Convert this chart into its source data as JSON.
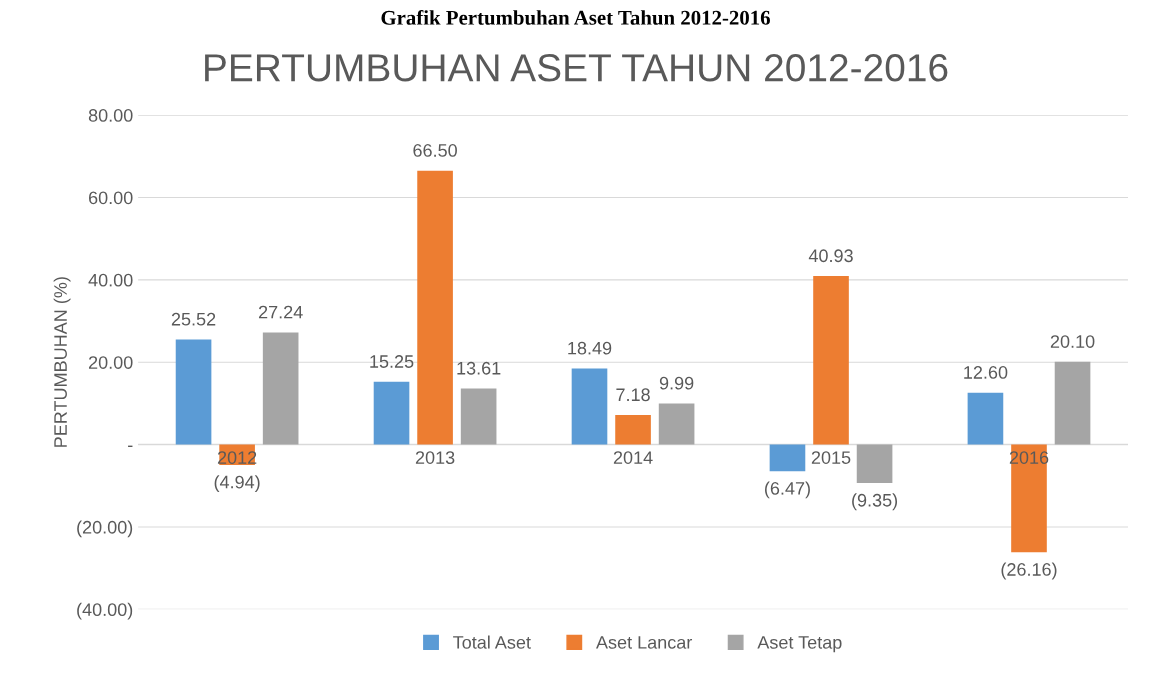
{
  "chart_data": {
    "type": "bar",
    "title": "PERTUMBUHAN ASET TAHUN 2012-2016",
    "ylabel": "PERTUMBUHAN (%)",
    "annotations": [
      "Grafik Pertumbuhan Aset Tahun 2012-2016"
    ],
    "categories": [
      "2012",
      "2013",
      "2014",
      "2015",
      "2016"
    ],
    "series": [
      {
        "name": "Total Aset",
        "color": "#5b9bd5",
        "values": [
          25.52,
          15.25,
          18.49,
          -6.47,
          12.6
        ],
        "value_labels": [
          "25.52",
          "15.25",
          "18.49",
          "(6.47)",
          "12.60"
        ]
      },
      {
        "name": "Aset Lancar",
        "color": "#ed7d31",
        "values": [
          -4.94,
          66.5,
          7.18,
          40.93,
          -26.16
        ],
        "value_labels": [
          "(4.94)",
          "66.50",
          "7.18",
          "40.93",
          "(26.16)"
        ]
      },
      {
        "name": "Aset Tetap",
        "color": "#a5a5a5",
        "values": [
          27.24,
          13.61,
          9.99,
          -9.35,
          20.1
        ],
        "value_labels": [
          "27.24",
          "13.61",
          "9.99",
          "(9.35)",
          "20.10"
        ]
      }
    ],
    "ylim": [
      -40,
      80
    ],
    "yticks": [
      {
        "value": -40,
        "label": "(40.00)"
      },
      {
        "value": -20,
        "label": "(20.00)"
      },
      {
        "value": 0,
        "label": "-"
      },
      {
        "value": 20,
        "label": "20.00"
      },
      {
        "value": 40,
        "label": "40.00"
      },
      {
        "value": 60,
        "label": "60.00"
      },
      {
        "value": 80,
        "label": "80.00"
      }
    ],
    "grid": "y",
    "legend": "bottom"
  }
}
